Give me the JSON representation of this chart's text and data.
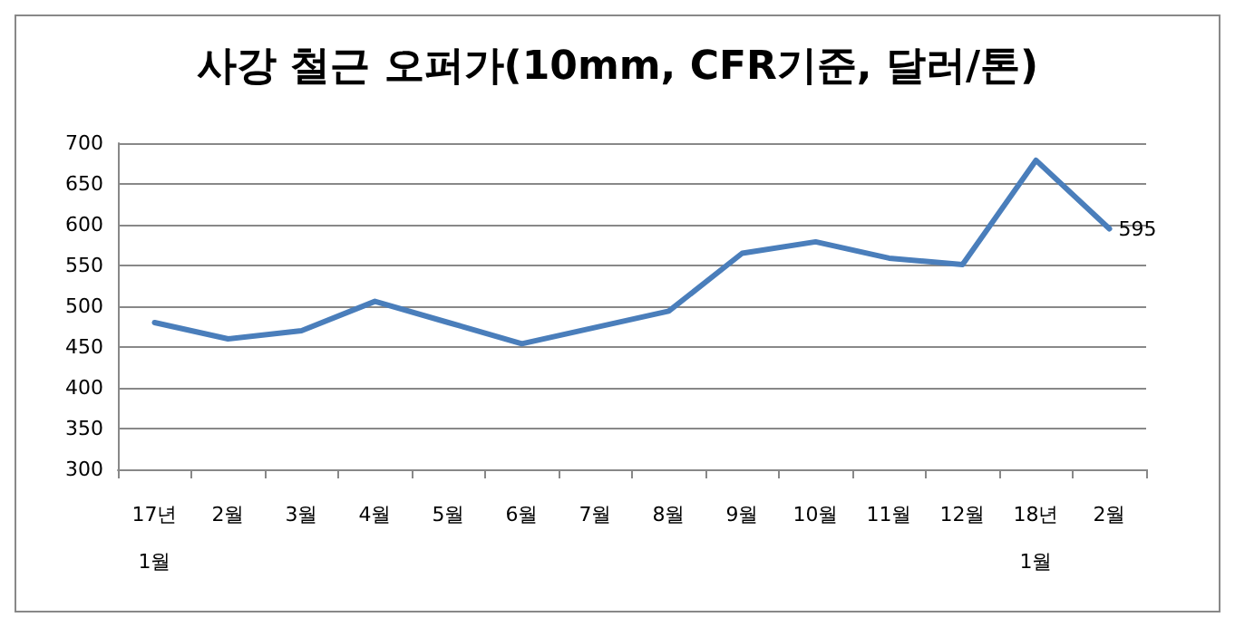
{
  "chart_data": {
    "type": "line",
    "title": "사강 철근 오퍼가(10mm, CFR기준, 달러/톤)",
    "categories": [
      "17년\n1월",
      "2월",
      "3월",
      "4월",
      "5월",
      "6월",
      "7월",
      "8월",
      "9월",
      "10월",
      "11월",
      "12월",
      "18년\n1월",
      "2월"
    ],
    "series": [
      {
        "color": "#4a7ebb",
        "values": [
          480,
          460,
          470,
          506,
          480,
          454,
          474,
          494,
          565,
          579,
          559,
          551,
          679,
          595
        ],
        "value_labels": [
          null,
          null,
          null,
          null,
          null,
          null,
          null,
          null,
          null,
          null,
          null,
          null,
          null,
          "595"
        ]
      }
    ],
    "ylim": [
      300,
      700
    ],
    "yticks": [
      300,
      350,
      400,
      450,
      500,
      550,
      600,
      650,
      700
    ],
    "grid": "y",
    "marker": "none",
    "line_style": "solid"
  }
}
